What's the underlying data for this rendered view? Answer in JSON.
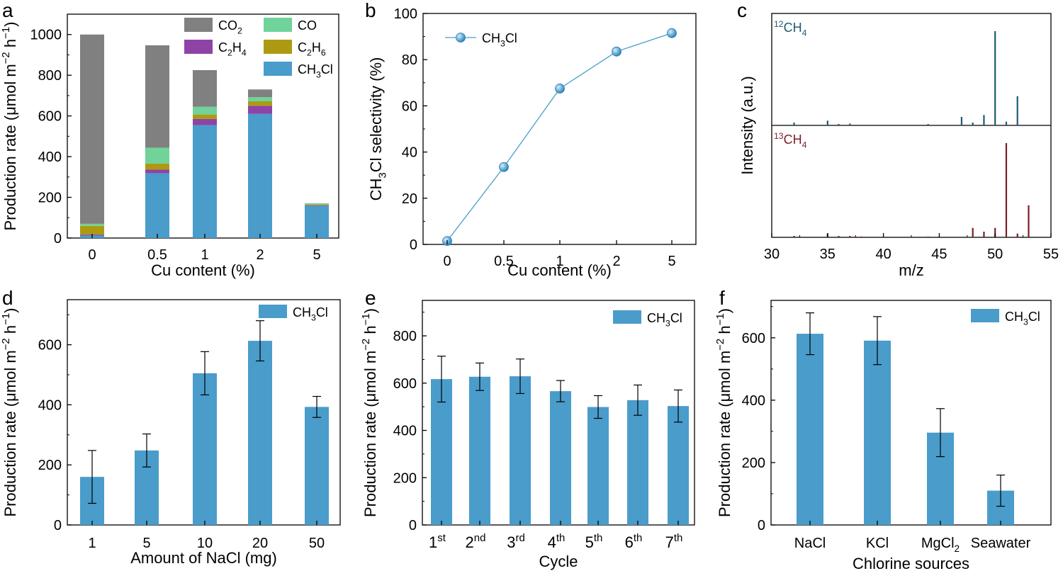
{
  "colors": {
    "co2": "#808080",
    "co": "#6fd39a",
    "c2h4": "#8e44a6",
    "c2h6": "#ad9a12",
    "ch3cl": "#4a9ccb",
    "line": "#4a9ccb",
    "ms12": "#1d5a73",
    "ms13": "#7a1e28"
  },
  "chart_data": [
    {
      "panel": "a",
      "type": "bar",
      "stacked": true,
      "xlabel": "Cu content (%)",
      "ylabel": "Production rate (μmol m⁻² h⁻¹)",
      "ylim": [
        0,
        1100
      ],
      "yticks": [
        0,
        200,
        400,
        600,
        800,
        1000
      ],
      "categories": [
        "0",
        "0.5",
        "1",
        "2",
        "5"
      ],
      "series": [
        {
          "name": "CH3Cl",
          "color_key": "ch3cl",
          "values": [
            12,
            318,
            555,
            610,
            158
          ]
        },
        {
          "name": "C2H4",
          "color_key": "c2h4",
          "values": [
            5,
            18,
            30,
            40,
            3
          ]
        },
        {
          "name": "C2H6",
          "color_key": "c2h6",
          "values": [
            43,
            30,
            22,
            22,
            4
          ]
        },
        {
          "name": "CO",
          "color_key": "co",
          "values": [
            10,
            78,
            38,
            20,
            6
          ]
        },
        {
          "name": "CO2",
          "color_key": "co2",
          "values": [
            930,
            503,
            180,
            38,
            0
          ]
        }
      ],
      "legend": [
        {
          "label": "CO",
          "sub": "2",
          "color_key": "co2"
        },
        {
          "label": "CO",
          "sub": "",
          "color_key": "co"
        },
        {
          "label": "C",
          "sub": "2",
          "tail": "H",
          "sub2": "4",
          "color_key": "c2h4"
        },
        {
          "label": "C",
          "sub": "2",
          "tail": "H",
          "sub2": "6",
          "color_key": "c2h6"
        },
        {
          "label": "CH",
          "sub": "3",
          "tail": "Cl",
          "sub2": "",
          "color_key": "ch3cl"
        }
      ]
    },
    {
      "panel": "b",
      "type": "line",
      "xlabel": "Cu content (%)",
      "ylabel": "CH₃Cl selectivity (%)",
      "ylim": [
        0,
        100
      ],
      "yticks": [
        0,
        20,
        40,
        60,
        80,
        100
      ],
      "categories": [
        "0",
        "0.5",
        "1",
        "2",
        "5"
      ],
      "series": [
        {
          "name": "CH3Cl",
          "values": [
            1.5,
            33.5,
            67.5,
            83.5,
            91.5
          ]
        }
      ],
      "legend_label": "CH₃Cl"
    },
    {
      "panel": "c",
      "type": "bar",
      "subtype": "mass-spectrum",
      "xlabel": "m/z",
      "ylabel": "Intensity (a.u.)",
      "xlim": [
        30,
        55
      ],
      "xticks": [
        30,
        35,
        40,
        45,
        50,
        55
      ],
      "top_label": "12CH4",
      "bottom_label": "13CH4",
      "top_peaks": [
        [
          32,
          3
        ],
        [
          35,
          5
        ],
        [
          36,
          1.5
        ],
        [
          37,
          2
        ],
        [
          44,
          1.5
        ],
        [
          47,
          9
        ],
        [
          48,
          3
        ],
        [
          49,
          11
        ],
        [
          50,
          100
        ],
        [
          51,
          4
        ],
        [
          52,
          31
        ]
      ],
      "bottom_peaks": [
        [
          32,
          1.5
        ],
        [
          35,
          4
        ],
        [
          36,
          1.5
        ],
        [
          37,
          1.5
        ],
        [
          38,
          0.8
        ],
        [
          44,
          0.8
        ],
        [
          48,
          10
        ],
        [
          49,
          6
        ],
        [
          50,
          10
        ],
        [
          51,
          100
        ],
        [
          52,
          4
        ],
        [
          53,
          34
        ]
      ]
    },
    {
      "panel": "d",
      "type": "bar",
      "xlabel": "Amount of NaCl (mg)",
      "ylabel": "Production rate (μmol m⁻² h⁻¹)",
      "ylim": [
        0,
        750
      ],
      "yticks": [
        0,
        200,
        400,
        600
      ],
      "categories": [
        "1",
        "5",
        "10",
        "20",
        "50"
      ],
      "values": [
        160,
        248,
        505,
        613,
        393
      ],
      "errors": [
        88,
        55,
        72,
        67,
        35
      ],
      "legend_label": "CH₃Cl"
    },
    {
      "panel": "e",
      "type": "bar",
      "xlabel": "Cycle",
      "ylabel": "Production rate (μmol m⁻² h⁻¹)",
      "ylim": [
        0,
        950
      ],
      "yticks": [
        0,
        200,
        400,
        600,
        800
      ],
      "categories": [
        "1st",
        "2nd",
        "3rd",
        "4th",
        "5th",
        "6th",
        "7th"
      ],
      "values": [
        617,
        627,
        629,
        566,
        499,
        528,
        503
      ],
      "errors": [
        97,
        58,
        73,
        45,
        48,
        64,
        68
      ],
      "legend_label": "CH₃Cl"
    },
    {
      "panel": "f",
      "type": "bar",
      "xlabel": "Chlorine sources",
      "ylabel": "Production rate (μmol m⁻² h⁻¹)",
      "ylim": [
        0,
        720
      ],
      "yticks": [
        0,
        200,
        400,
        600
      ],
      "categories": [
        "NaCl",
        "KCl",
        "MgCl₂",
        "Seawater"
      ],
      "values": [
        613,
        591,
        296,
        110
      ],
      "errors": [
        67,
        77,
        77,
        50
      ],
      "legend_label": "CH₃Cl"
    }
  ]
}
